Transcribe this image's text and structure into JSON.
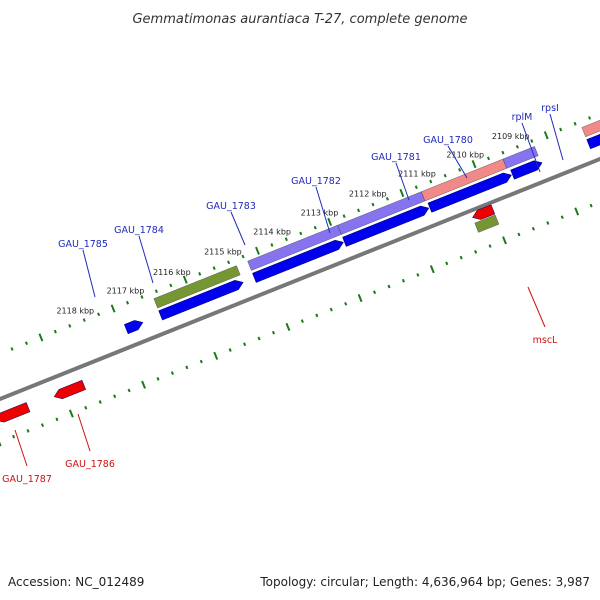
{
  "title": "Gemmatimonas aurantiaca T-27, complete genome",
  "accession": "Accession: NC_012489",
  "summary": "Topology: circular; Length: 4,636,964 bp; Genes: 3,987",
  "colors": {
    "forward_cds": "#0000ee",
    "reverse_cds": "#ee0000",
    "feature_green": "#6b8e23",
    "feature_purple": "#7b68ee",
    "feature_pink": "#f08080",
    "backbone": "#777777",
    "tick_dots": "#1a7a1a",
    "forward_label": "#1f2bb8",
    "reverse_label": "#cc1111"
  },
  "tick_labels": [
    "2118 kbp",
    "2117 kbp",
    "2116 kbp",
    "2115 kbp",
    "2114 kbp",
    "2113 kbp",
    "2112 kbp",
    "2111 kbp",
    "2110 kbp",
    "2109 kbp"
  ],
  "forward_genes": [
    "GAU_1785",
    "GAU_1784",
    "GAU_1783",
    "GAU_1782",
    "GAU_1781",
    "GAU_1780",
    "rplM",
    "rpsI"
  ],
  "reverse_genes": [
    "mscL",
    "GAU_1786",
    "GAU_1787"
  ]
}
